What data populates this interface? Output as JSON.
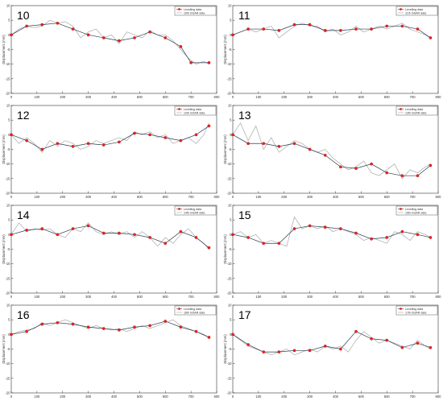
{
  "legend": {
    "levelling_label": "Levelling data",
    "insar_suffix": "InSAR data"
  },
  "ylabel": "Displacement (mm)",
  "chart_data": [
    {
      "type": "line",
      "panel": "10",
      "insar_label": "10th InSAR data",
      "xlim": [
        0,
        800
      ],
      "ylim": [
        -20,
        10
      ],
      "xticks": [
        0,
        100,
        200,
        300,
        400,
        500,
        600,
        700,
        800
      ],
      "yticks": [
        10,
        5,
        0,
        -5,
        -10,
        -15,
        -20
      ],
      "levelling": {
        "x": [
          0,
          60,
          120,
          180,
          240,
          300,
          360,
          420,
          480,
          540,
          600,
          660,
          700,
          770
        ],
        "y": [
          0,
          3,
          3.5,
          4,
          2,
          0,
          -1,
          -2,
          -1,
          1,
          -1,
          -4,
          -9.5,
          -9.5
        ]
      },
      "insar": {
        "x": [
          0,
          30,
          60,
          90,
          120,
          150,
          180,
          210,
          240,
          270,
          300,
          330,
          360,
          390,
          420,
          450,
          480,
          510,
          540,
          570,
          600,
          630,
          660,
          690,
          720,
          750,
          770
        ],
        "y": [
          0,
          2,
          3,
          2.5,
          3,
          5,
          4,
          4.5,
          3,
          -1,
          1,
          2,
          -1,
          0,
          -3,
          1,
          0,
          -1,
          1.5,
          0,
          0,
          -2,
          -5,
          -8,
          -10,
          -9,
          -10
        ]
      }
    },
    {
      "type": "line",
      "panel": "11",
      "insar_label": "11th InSAR data",
      "xlim": [
        0,
        800
      ],
      "ylim": [
        -20,
        10
      ],
      "xticks": [
        0,
        100,
        200,
        300,
        400,
        500,
        600,
        700,
        800
      ],
      "yticks": [
        10,
        5,
        0,
        -5,
        -10,
        -15,
        -20
      ],
      "levelling": {
        "x": [
          0,
          60,
          120,
          180,
          240,
          300,
          360,
          420,
          480,
          540,
          600,
          660,
          720,
          770
        ],
        "y": [
          0,
          2,
          2,
          1.5,
          3.5,
          3.5,
          1.5,
          1.5,
          2,
          2,
          3,
          3,
          2,
          -1
        ]
      },
      "insar": {
        "x": [
          0,
          30,
          60,
          90,
          120,
          150,
          180,
          210,
          240,
          270,
          300,
          330,
          360,
          390,
          420,
          450,
          480,
          510,
          540,
          570,
          600,
          630,
          660,
          690,
          720,
          750,
          770
        ],
        "y": [
          0,
          1,
          2,
          1,
          2,
          3,
          -1,
          1,
          3,
          4,
          3,
          3,
          1,
          2,
          0,
          1,
          3,
          1,
          2,
          3,
          2,
          3,
          4,
          2,
          1,
          0,
          -1
        ]
      }
    },
    {
      "type": "line",
      "panel": "12",
      "insar_label": "12th InSAR data",
      "xlim": [
        0,
        800
      ],
      "ylim": [
        -20,
        10
      ],
      "xticks": [
        0,
        100,
        200,
        300,
        400,
        500,
        600,
        700,
        800
      ],
      "yticks": [
        10,
        5,
        0,
        -5,
        -10,
        -15,
        -20
      ],
      "levelling": {
        "x": [
          0,
          60,
          120,
          180,
          240,
          300,
          360,
          420,
          480,
          540,
          600,
          660,
          720,
          770
        ],
        "y": [
          0,
          -2,
          -5,
          -3,
          -4,
          -3,
          -3.5,
          -2.5,
          0.5,
          0,
          -1,
          -2,
          0,
          3
        ]
      },
      "insar": {
        "x": [
          0,
          30,
          60,
          90,
          120,
          150,
          180,
          210,
          240,
          270,
          300,
          330,
          360,
          390,
          420,
          450,
          480,
          510,
          540,
          570,
          600,
          630,
          660,
          690,
          720,
          750,
          770
        ],
        "y": [
          0,
          -3,
          -1,
          -3,
          -6,
          -2,
          -4,
          -2,
          -3,
          -5,
          -4,
          -2,
          -3,
          -2,
          -1,
          -2,
          1,
          0,
          1,
          -1,
          0,
          -3,
          -2,
          -1,
          -3,
          0,
          4
        ]
      }
    },
    {
      "type": "line",
      "panel": "13",
      "insar_label": "13th InSAR data",
      "xlim": [
        0,
        800
      ],
      "ylim": [
        -20,
        10
      ],
      "xticks": [
        0,
        100,
        200,
        300,
        400,
        500,
        600,
        700,
        800
      ],
      "yticks": [
        10,
        5,
        0,
        -5,
        -10,
        -15,
        -20
      ],
      "levelling": {
        "x": [
          0,
          60,
          120,
          180,
          240,
          300,
          360,
          420,
          480,
          540,
          600,
          660,
          720,
          770
        ],
        "y": [
          0,
          -3,
          -3,
          -4,
          -3,
          -5,
          -7,
          -11,
          -11.5,
          -10,
          -13,
          -14,
          -14,
          -10.5
        ]
      },
      "insar": {
        "x": [
          0,
          30,
          60,
          90,
          120,
          150,
          180,
          210,
          240,
          270,
          300,
          330,
          360,
          390,
          420,
          450,
          480,
          510,
          540,
          570,
          600,
          630,
          660,
          690,
          720,
          750,
          770
        ],
        "y": [
          0,
          4,
          -2,
          3,
          -5,
          -1,
          -6,
          -4,
          -2,
          -3,
          -5,
          -6,
          -5,
          -8,
          -10,
          -12,
          -11,
          -9,
          -13,
          -14,
          -12,
          -10,
          -15,
          -12,
          -13,
          -11,
          -10
        ]
      }
    },
    {
      "type": "line",
      "panel": "14",
      "insar_label": "14th InSAR data",
      "xlim": [
        0,
        800
      ],
      "ylim": [
        -20,
        10
      ],
      "xticks": [
        0,
        100,
        200,
        300,
        400,
        500,
        600,
        700,
        800
      ],
      "yticks": [
        10,
        5,
        0,
        -5,
        -10,
        -15,
        -20
      ],
      "levelling": {
        "x": [
          0,
          60,
          120,
          180,
          240,
          300,
          360,
          420,
          480,
          540,
          600,
          660,
          720,
          770
        ],
        "y": [
          0,
          1.5,
          2,
          0,
          2,
          3,
          0.5,
          0.5,
          0,
          -1,
          -3,
          1,
          -1,
          -4.5
        ]
      },
      "insar": {
        "x": [
          0,
          30,
          60,
          90,
          120,
          150,
          180,
          210,
          240,
          270,
          300,
          330,
          360,
          390,
          420,
          450,
          480,
          510,
          540,
          570,
          600,
          630,
          660,
          690,
          720,
          750,
          770
        ],
        "y": [
          0,
          4,
          1,
          2,
          1.5,
          2,
          0,
          -1,
          2,
          1,
          4,
          1,
          0,
          1,
          0,
          1,
          -1,
          1,
          -1,
          -4,
          -1,
          -3,
          0,
          2,
          -1,
          -3,
          -5
        ]
      }
    },
    {
      "type": "line",
      "panel": "15",
      "insar_label": "15th InSAR data",
      "xlim": [
        0,
        800
      ],
      "ylim": [
        -20,
        10
      ],
      "xticks": [
        0,
        100,
        200,
        300,
        400,
        500,
        600,
        700,
        800
      ],
      "yticks": [
        10,
        5,
        0,
        -5,
        -10,
        -15,
        -20
      ],
      "levelling": {
        "x": [
          0,
          60,
          120,
          180,
          240,
          300,
          360,
          420,
          480,
          540,
          600,
          660,
          720,
          770
        ],
        "y": [
          0,
          -1,
          -3,
          -3,
          2,
          3,
          2.5,
          2,
          0.5,
          -1.5,
          -1,
          1,
          0,
          -1
        ]
      },
      "insar": {
        "x": [
          0,
          30,
          60,
          90,
          120,
          150,
          180,
          210,
          240,
          270,
          300,
          330,
          360,
          390,
          420,
          450,
          480,
          510,
          540,
          570,
          600,
          630,
          660,
          690,
          720,
          750,
          770
        ],
        "y": [
          0,
          1,
          -1,
          0,
          -3,
          -2,
          -3,
          -4,
          6,
          2,
          3,
          2,
          3,
          1,
          2,
          1,
          0,
          -2,
          -1,
          -2,
          -3,
          1,
          0,
          -2,
          1,
          0,
          -1
        ]
      }
    },
    {
      "type": "line",
      "panel": "16",
      "insar_label": "16th InSAR data",
      "xlim": [
        0,
        800
      ],
      "ylim": [
        -20,
        10
      ],
      "xticks": [
        0,
        100,
        200,
        300,
        400,
        500,
        600,
        700,
        800
      ],
      "yticks": [
        10,
        5,
        0,
        -5,
        -10,
        -15,
        -20
      ],
      "levelling": {
        "x": [
          0,
          60,
          120,
          180,
          240,
          300,
          360,
          420,
          480,
          540,
          600,
          660,
          720,
          770
        ],
        "y": [
          0,
          1,
          3.5,
          4,
          3.5,
          2.5,
          2,
          1.5,
          2.5,
          3,
          4.5,
          2.5,
          1,
          -1
        ]
      },
      "insar": {
        "x": [
          0,
          30,
          60,
          90,
          120,
          150,
          180,
          210,
          240,
          270,
          300,
          330,
          360,
          390,
          420,
          450,
          480,
          510,
          540,
          570,
          600,
          630,
          660,
          690,
          720,
          750,
          770
        ],
        "y": [
          0,
          1,
          1.5,
          2,
          4,
          3,
          4,
          5,
          4,
          3,
          2,
          3,
          2,
          1.5,
          2,
          1,
          2,
          3,
          2,
          3,
          4,
          5,
          3,
          2,
          1,
          0,
          -1
        ]
      }
    },
    {
      "type": "line",
      "panel": "17",
      "insar_label": "17th InSAR data",
      "xlim": [
        0,
        800
      ],
      "ylim": [
        -20,
        10
      ],
      "xticks": [
        0,
        100,
        200,
        300,
        400,
        500,
        600,
        700,
        800
      ],
      "yticks": [
        10,
        5,
        0,
        -5,
        -10,
        -15,
        -20
      ],
      "levelling": {
        "x": [
          0,
          60,
          120,
          180,
          240,
          300,
          360,
          420,
          480,
          540,
          600,
          660,
          720,
          770
        ],
        "y": [
          0,
          -3.5,
          -6,
          -6,
          -5.5,
          -5.5,
          -4,
          -5,
          1,
          -1.5,
          -2,
          -4.5,
          -3,
          -4.5
        ]
      },
      "insar": {
        "x": [
          0,
          30,
          60,
          90,
          120,
          150,
          180,
          210,
          240,
          270,
          300,
          330,
          360,
          390,
          420,
          450,
          480,
          510,
          540,
          570,
          600,
          630,
          660,
          690,
          720,
          750,
          770
        ],
        "y": [
          0,
          -2,
          -4,
          -5,
          -6,
          -7,
          -6,
          -5,
          -7,
          -6,
          -5,
          -6,
          -4,
          -5,
          -4,
          -6,
          -2,
          1,
          -1,
          -3,
          -2,
          -3,
          -4,
          -5,
          -2,
          -4,
          -5
        ]
      }
    }
  ]
}
